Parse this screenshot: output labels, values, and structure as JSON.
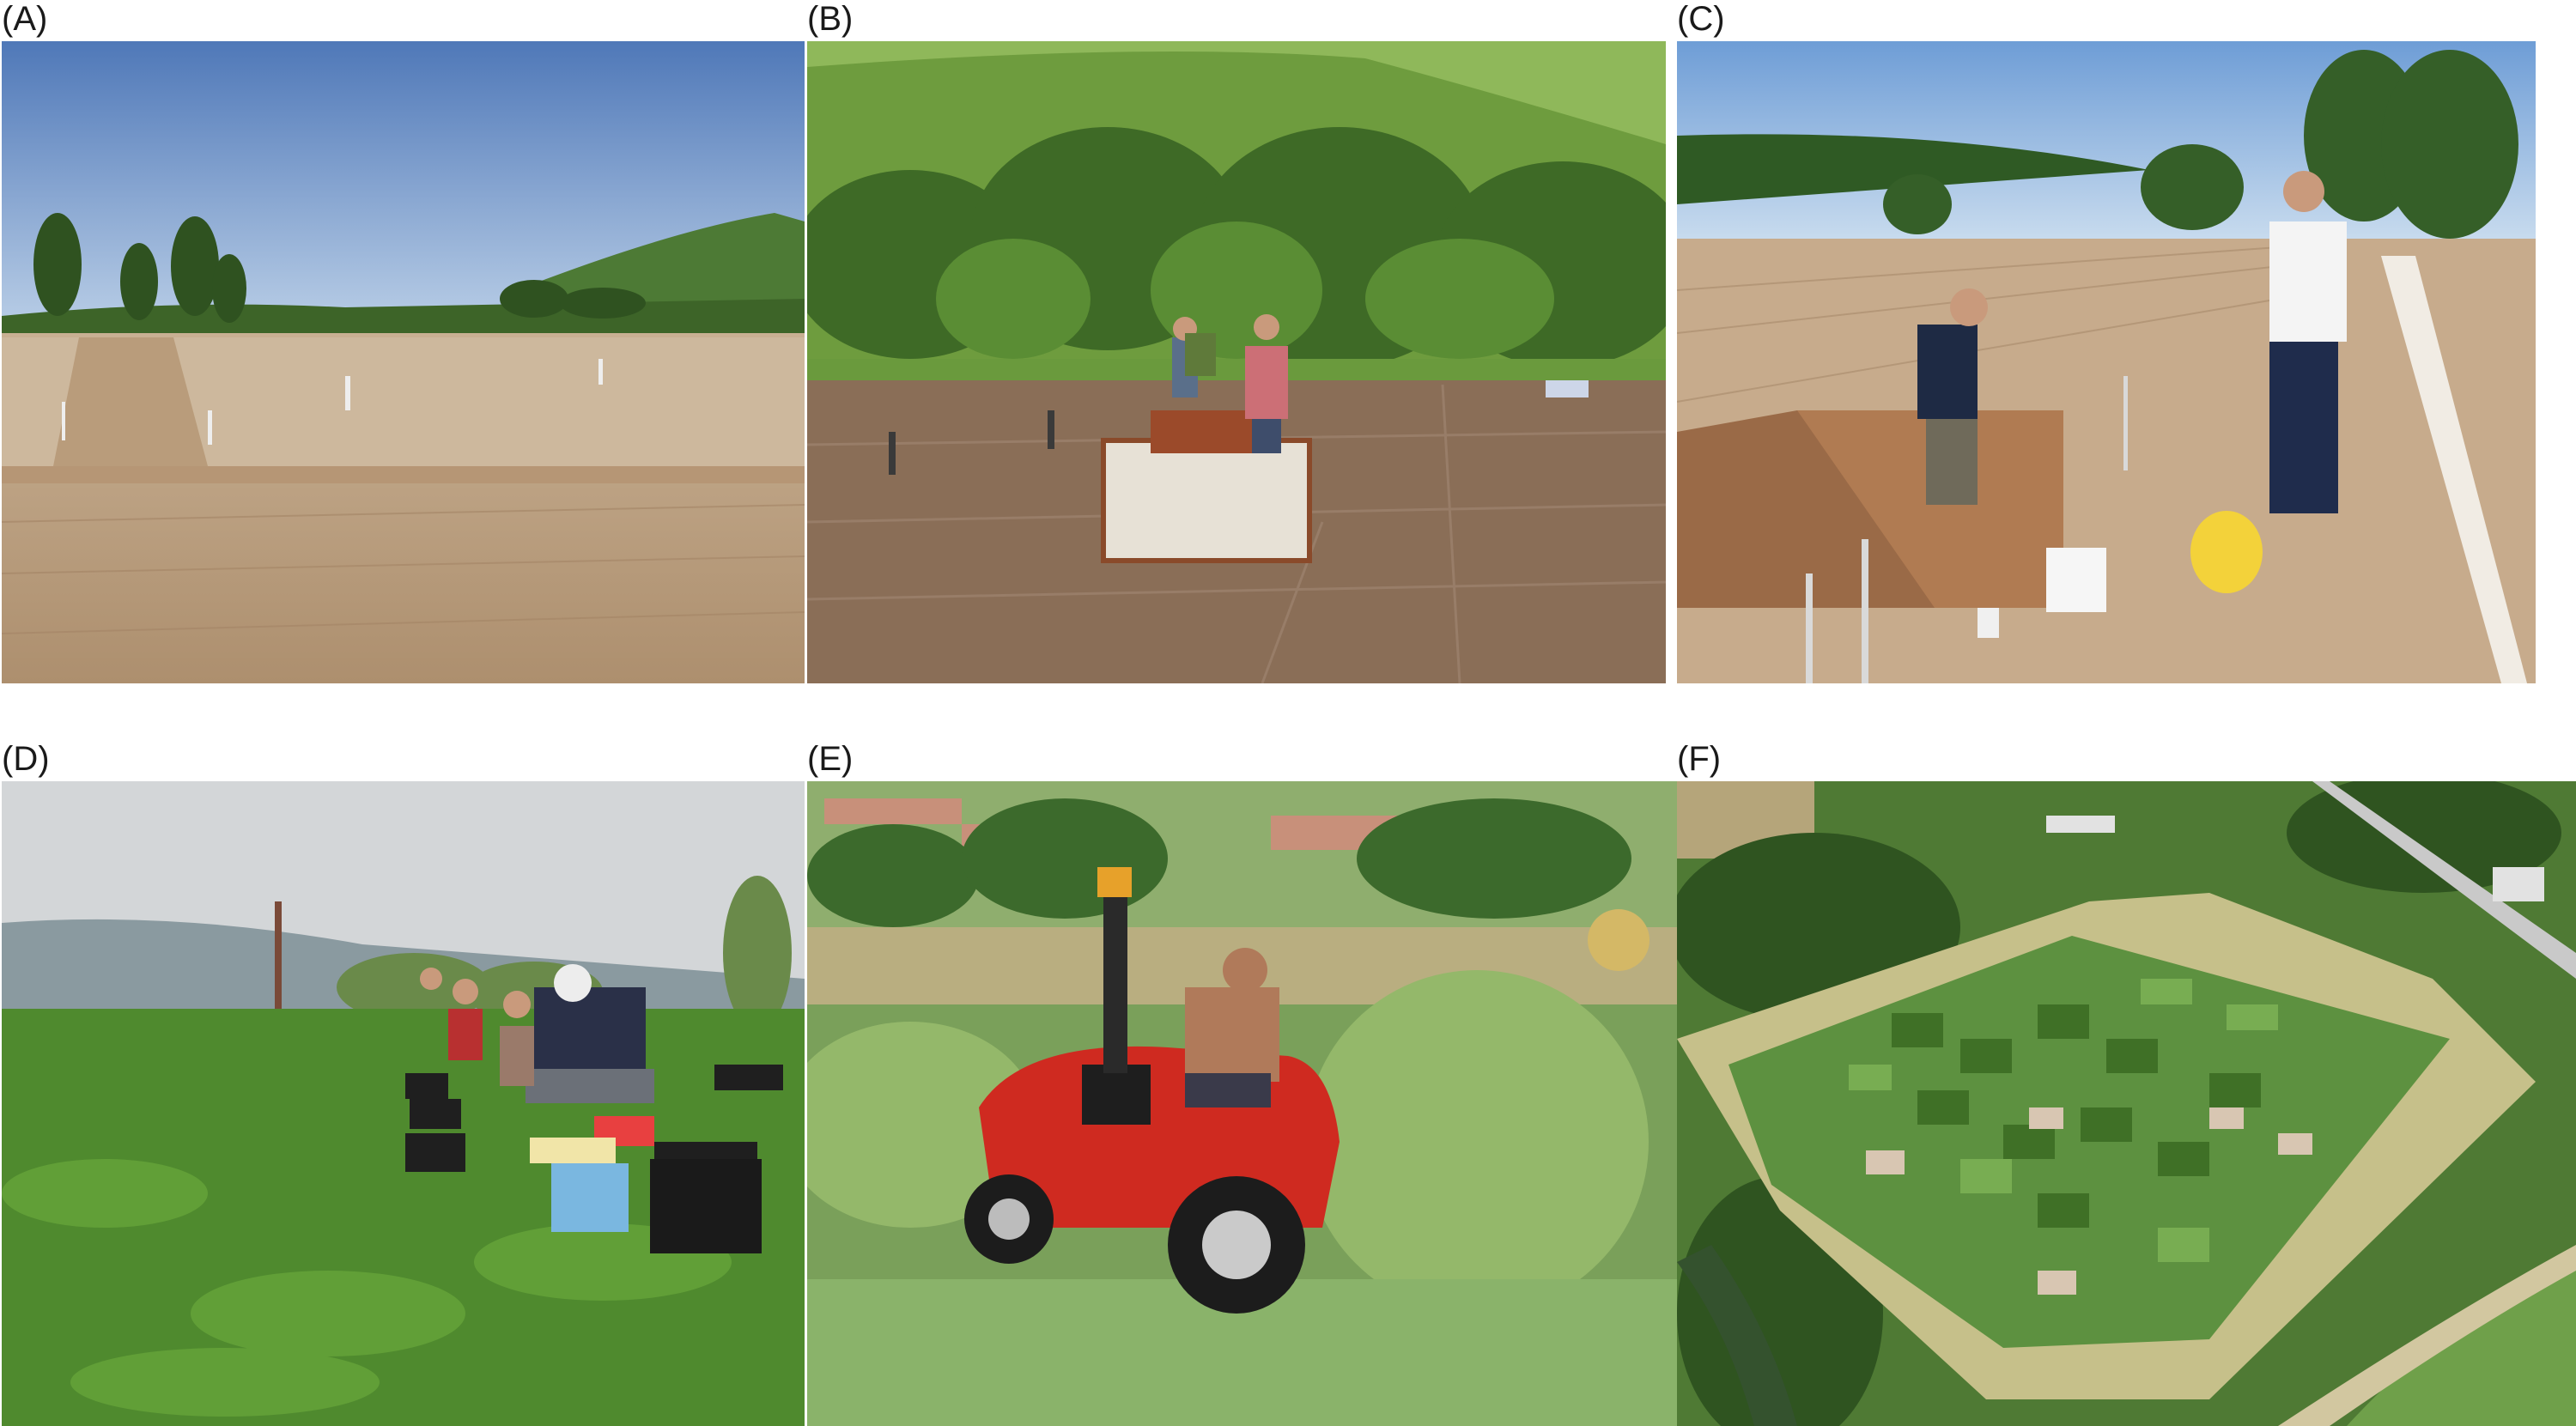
{
  "panels": [
    {
      "label": "(A)",
      "icon": "photo-icon"
    },
    {
      "label": "(B)",
      "icon": "photo-icon"
    },
    {
      "label": "(C)",
      "icon": "photo-icon"
    },
    {
      "label": "(D)",
      "icon": "photo-icon"
    },
    {
      "label": "(E)",
      "icon": "photo-icon"
    },
    {
      "label": "(F)",
      "icon": "photo-icon"
    }
  ],
  "colors": {
    "sky": "#7aa3d6",
    "soil": "#b59a7c",
    "grass": "#5e9a3a",
    "forest": "#3f6e2a",
    "tractor": "#d42a22"
  }
}
